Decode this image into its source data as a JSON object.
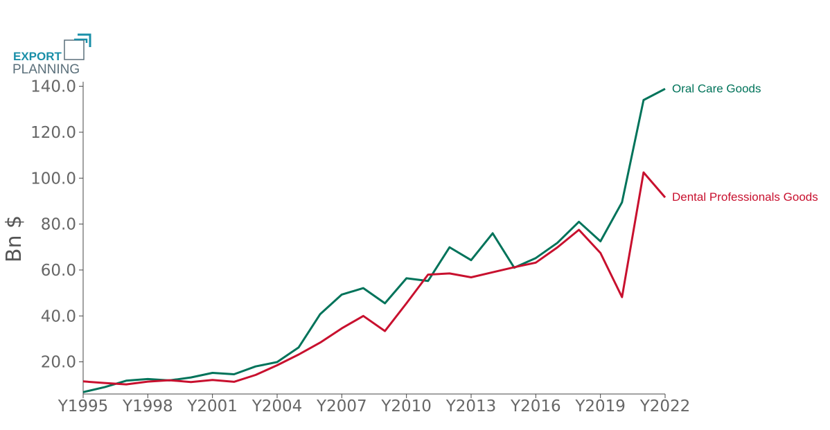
{
  "logo": {
    "line1": "EXPORT",
    "line2": "PLANNING",
    "color_primary": "#1a8fa8",
    "color_secondary": "#5a6f7a"
  },
  "chart_data": {
    "type": "line",
    "title": "",
    "xlabel": "",
    "ylabel": "Bn $",
    "x": [
      1995,
      1996,
      1997,
      1998,
      1999,
      2000,
      2001,
      2002,
      2003,
      2004,
      2005,
      2006,
      2007,
      2008,
      2009,
      2010,
      2011,
      2012,
      2013,
      2014,
      2015,
      2016,
      2017,
      2018,
      2019,
      2020,
      2021,
      2022
    ],
    "xtick_labels": [
      "Y1995",
      "Y1998",
      "Y2001",
      "Y2004",
      "Y2007",
      "Y2010",
      "Y2013",
      "Y2016",
      "Y2019",
      "Y2022"
    ],
    "xtick_years": [
      1995,
      1998,
      2001,
      2004,
      2007,
      2010,
      2013,
      2016,
      2019,
      2022
    ],
    "ylim": [
      6,
      142
    ],
    "yticks": [
      20,
      40,
      60,
      80,
      100,
      120,
      140
    ],
    "ytick_labels": [
      "20.0",
      "40.0",
      "60.0",
      "80.0",
      "100.0",
      "120.0",
      "140.0"
    ],
    "grid": false,
    "series": [
      {
        "name": "Oral Care Goods",
        "color": "#00735a",
        "values": [
          6.8,
          9.0,
          11.8,
          12.5,
          11.9,
          13.2,
          15.2,
          14.6,
          18.0,
          19.9,
          26.3,
          40.8,
          49.3,
          52.1,
          45.5,
          56.4,
          55.2,
          69.9,
          64.3,
          76.0,
          61.0,
          65.2,
          71.8,
          81.0,
          72.5,
          89.5,
          134.0,
          138.9
        ]
      },
      {
        "name": "Dental Professionals Goods",
        "color": "#c8102e",
        "values": [
          11.5,
          10.8,
          10.2,
          11.4,
          12.0,
          11.2,
          12.1,
          11.3,
          14.3,
          18.5,
          23.2,
          28.4,
          34.6,
          40.0,
          33.4,
          45.5,
          58.0,
          58.5,
          56.8,
          59.0,
          61.2,
          63.2,
          69.8,
          77.5,
          67.4,
          48.2,
          102.5,
          91.6
        ]
      }
    ]
  }
}
